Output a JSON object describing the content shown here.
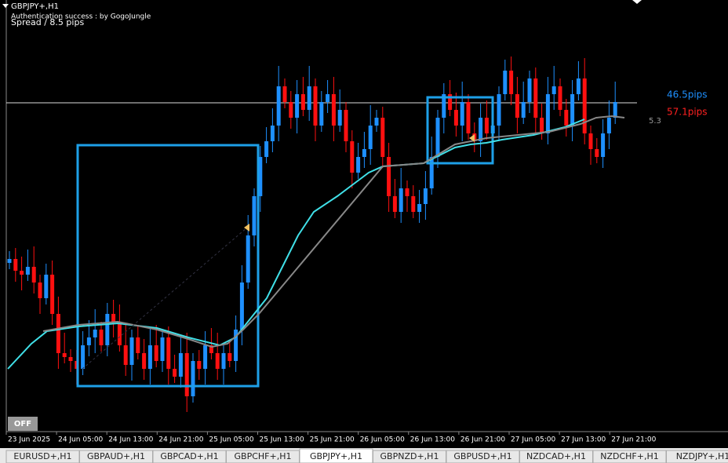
{
  "header": {
    "symbol": "GBPJPY+,H1",
    "auth": "Authentication success : by GogoJungle",
    "spread": "Spread / 8.5 pips"
  },
  "labels": {
    "pips_up": "46.5pips",
    "pips_down": "57.1pips",
    "small": "5.3"
  },
  "button": "OFF",
  "time_axis": [
    "23 Jun 2025",
    "24 Jun 05:00",
    "24 Jun 13:00",
    "24 Jun 21:00",
    "25 Jun 05:00",
    "25 Jun 13:00",
    "25 Jun 21:00",
    "26 Jun 05:00",
    "26 Jun 13:00",
    "26 Jun 21:00",
    "27 Jun 05:00",
    "27 Jun 13:00",
    "27 Jun 21:00"
  ],
  "tabs": [
    "EURUSD+,H1",
    "GBPAUD+,H1",
    "GBPCAD+,H1",
    "GBPCHF+,H1",
    "GBPJPY+,H1",
    "GBPNZD+,H1",
    "GBPUSD+,H1",
    "NZDCAD+,H1",
    "NZDCHF+,H1",
    "NZDJPY+,H1"
  ],
  "active_tab": 4
}
